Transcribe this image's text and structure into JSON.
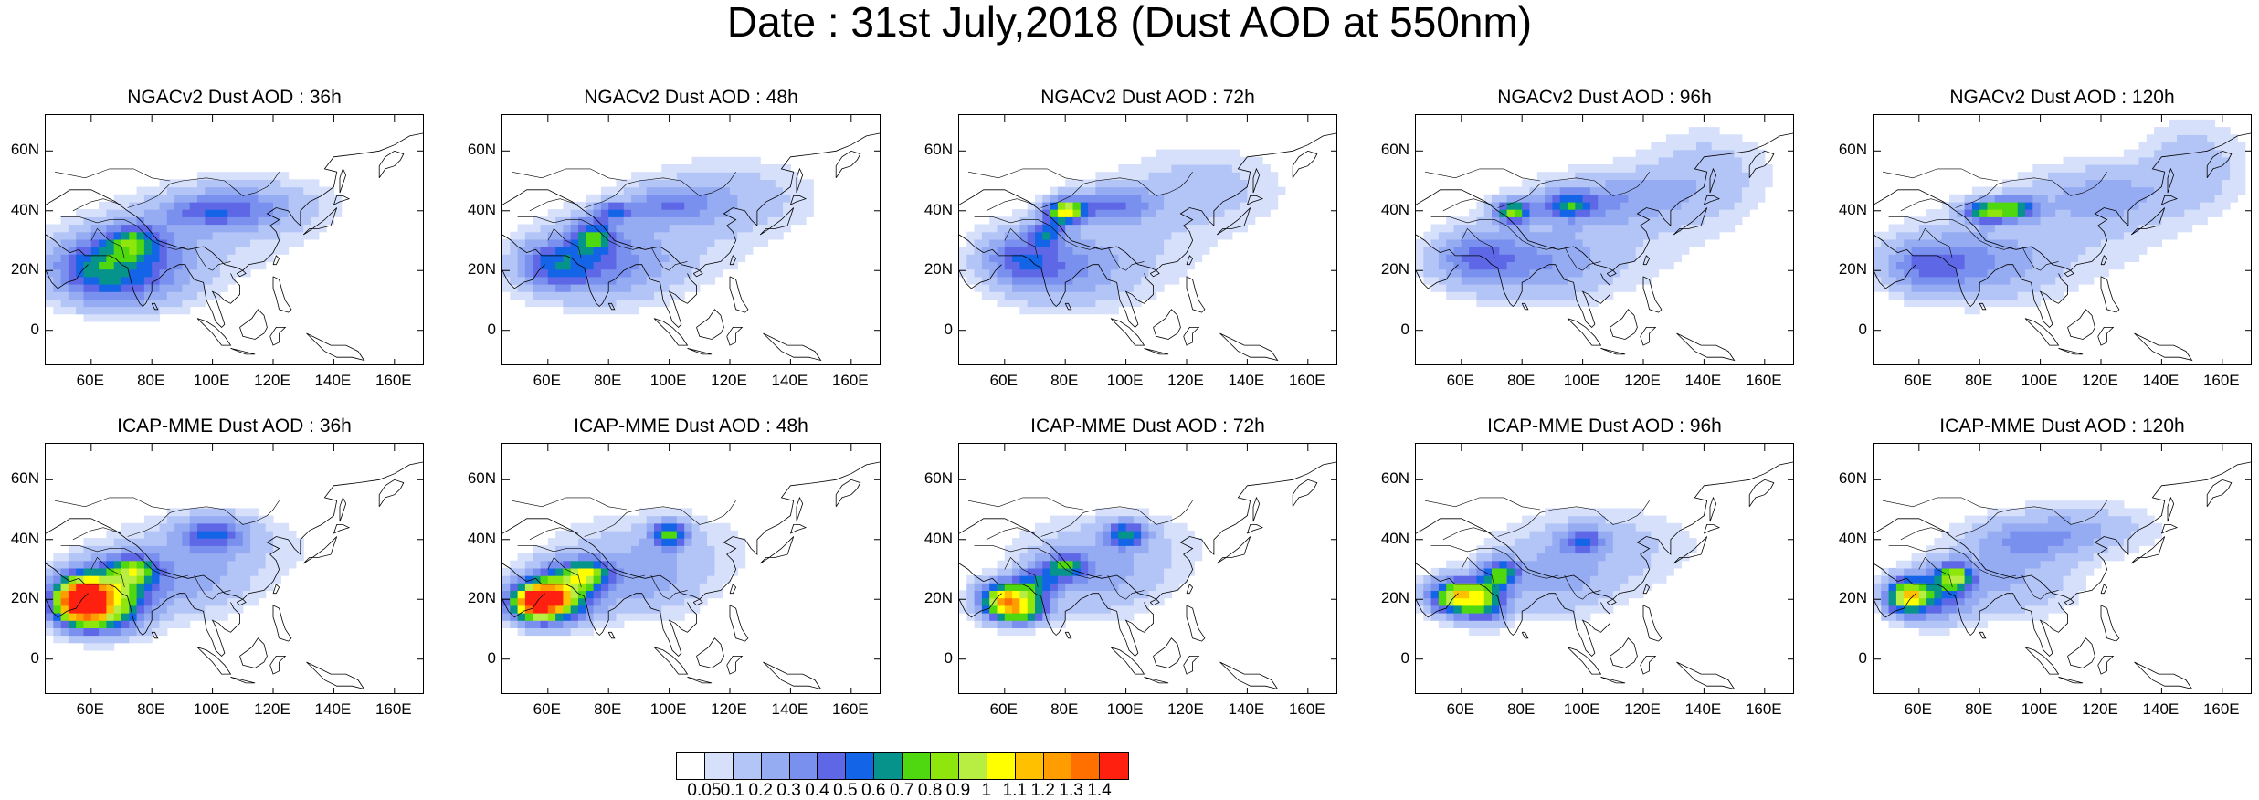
{
  "title": "Date : 31st July,2018 (Dust AOD at 550nm)",
  "panels": [
    {
      "title": "NGACv2 Dust AOD : 36h",
      "model": "NGACv2",
      "lead": "36h"
    },
    {
      "title": "NGACv2 Dust AOD : 48h",
      "model": "NGACv2",
      "lead": "48h"
    },
    {
      "title": "NGACv2 Dust AOD : 72h",
      "model": "NGACv2",
      "lead": "72h"
    },
    {
      "title": "NGACv2 Dust AOD : 96h",
      "model": "NGACv2",
      "lead": "96h"
    },
    {
      "title": "NGACv2 Dust AOD : 120h",
      "model": "NGACv2",
      "lead": "120h"
    },
    {
      "title": "ICAP-MME Dust AOD : 36h",
      "model": "ICAP-MME",
      "lead": "36h"
    },
    {
      "title": "ICAP-MME Dust AOD : 48h",
      "model": "ICAP-MME",
      "lead": "48h"
    },
    {
      "title": "ICAP-MME Dust AOD : 72h",
      "model": "ICAP-MME",
      "lead": "72h"
    },
    {
      "title": "ICAP-MME Dust AOD : 96h",
      "model": "ICAP-MME",
      "lead": "96h"
    },
    {
      "title": "ICAP-MME Dust AOD : 120h",
      "model": "ICAP-MME",
      "lead": "120h"
    }
  ],
  "lat_ticks": [
    "60N",
    "40N",
    "20N",
    "0"
  ],
  "lon_ticks": [
    "60E",
    "80E",
    "100E",
    "120E",
    "140E",
    "160E"
  ],
  "colorbar": {
    "labels": [
      "0.05",
      "0.1",
      "0.2",
      "0.3",
      "0.4",
      "0.5",
      "0.6",
      "0.7",
      "0.8",
      "0.9",
      "1",
      "1.1",
      "1.2",
      "1.3",
      "1.4"
    ],
    "colors": [
      "#ffffff",
      "#d6e0fb",
      "#b3c4f6",
      "#95abf2",
      "#7a90ee",
      "#5e68e6",
      "#1464e8",
      "#06938c",
      "#4fd80f",
      "#8fe60d",
      "#b8ee42",
      "#ffff00",
      "#ffc000",
      "#ff9d00",
      "#ff7000",
      "#ff2010"
    ]
  }
}
